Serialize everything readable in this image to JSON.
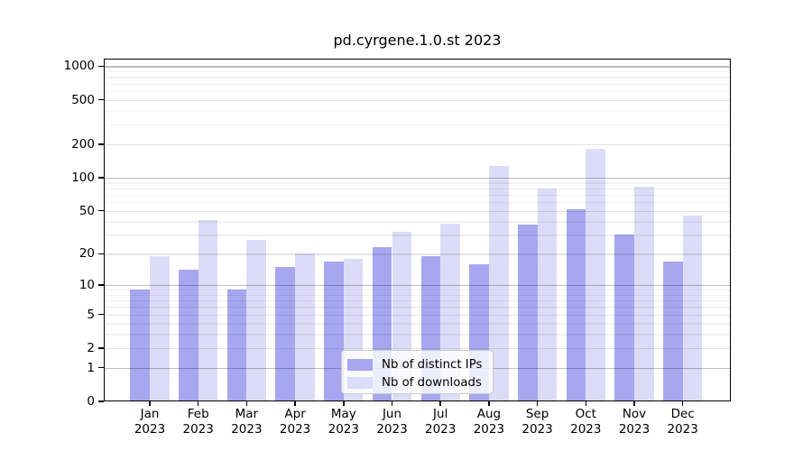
{
  "title": "pd.cyrgene.1.0.st 2023",
  "chart_data": {
    "type": "bar",
    "title": "pd.cyrgene.1.0.st 2023",
    "categories": [
      "Jan",
      "Feb",
      "Mar",
      "Apr",
      "May",
      "Jun",
      "Jul",
      "Aug",
      "Sep",
      "Oct",
      "Nov",
      "Dec"
    ],
    "year": "2023",
    "series": [
      {
        "name": "Nb of distinct IPs",
        "color": "#a7a7f0",
        "values": [
          9,
          14,
          9,
          15,
          17,
          23,
          19,
          16,
          37,
          51,
          30,
          17
        ]
      },
      {
        "name": "Nb of downloads",
        "color": "#dcdcf8",
        "values": [
          19,
          41,
          27,
          20,
          18,
          32,
          38,
          126,
          79,
          180,
          82,
          45
        ]
      }
    ],
    "y_axis": {
      "scale": "log10(1+x)",
      "ylim": [
        0,
        1170
      ],
      "max": 1170,
      "ticks": [
        0,
        1,
        2,
        5,
        10,
        20,
        50,
        100,
        200,
        500,
        1000
      ],
      "gridlines": {
        "major": [
          1,
          10,
          100,
          1000
        ],
        "mid": [
          2,
          5,
          20,
          50,
          200,
          500
        ],
        "minor": [
          3,
          4,
          6,
          7,
          8,
          9,
          30,
          40,
          60,
          70,
          80,
          90,
          300,
          400,
          600,
          700,
          800,
          900
        ]
      }
    },
    "xlabel": "",
    "ylabel": "",
    "grid": true,
    "legend": {
      "position": "bottom-center"
    }
  }
}
